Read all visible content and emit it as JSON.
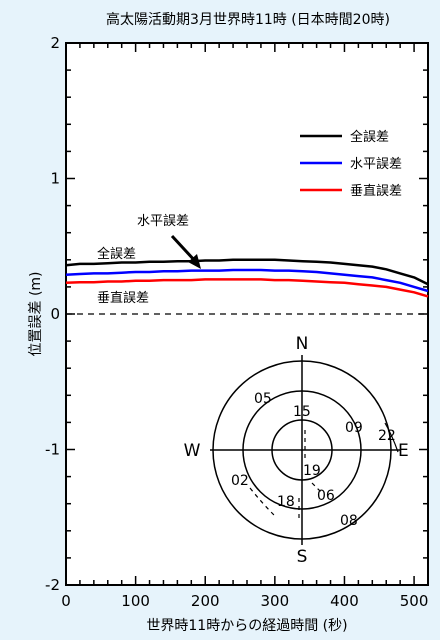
{
  "chart_data": {
    "type": "line",
    "title": "高太陽活動期3月世界時11時 (日本時間20時)",
    "xlabel": "世界時11時からの経過時間 (秒)",
    "ylabel": "位置誤差 (m)",
    "xlim": [
      0,
      520
    ],
    "ylim": [
      -2,
      2
    ],
    "xticks": [
      0,
      100,
      200,
      300,
      400,
      500
    ],
    "yticks": [
      -2,
      -1,
      0,
      1,
      2
    ],
    "grid": false,
    "legend_position": "top-right",
    "series": [
      {
        "name": "全誤差",
        "color": "#000000",
        "x": [
          0,
          20,
          40,
          60,
          80,
          100,
          120,
          140,
          160,
          180,
          200,
          220,
          240,
          260,
          280,
          300,
          320,
          340,
          360,
          380,
          400,
          420,
          440,
          460,
          480,
          500,
          520
        ],
        "y": [
          0.36,
          0.37,
          0.37,
          0.375,
          0.38,
          0.38,
          0.385,
          0.385,
          0.39,
          0.39,
          0.395,
          0.395,
          0.4,
          0.4,
          0.4,
          0.4,
          0.395,
          0.39,
          0.385,
          0.38,
          0.37,
          0.36,
          0.35,
          0.33,
          0.3,
          0.27,
          0.22
        ]
      },
      {
        "name": "水平誤差",
        "color": "#0000ff",
        "x": [
          0,
          20,
          40,
          60,
          80,
          100,
          120,
          140,
          160,
          180,
          200,
          220,
          240,
          260,
          280,
          300,
          320,
          340,
          360,
          380,
          400,
          420,
          440,
          460,
          480,
          500,
          520
        ],
        "y": [
          0.29,
          0.295,
          0.3,
          0.3,
          0.305,
          0.31,
          0.31,
          0.315,
          0.315,
          0.32,
          0.32,
          0.32,
          0.325,
          0.325,
          0.325,
          0.32,
          0.32,
          0.315,
          0.31,
          0.3,
          0.29,
          0.28,
          0.27,
          0.25,
          0.23,
          0.2,
          0.17
        ]
      },
      {
        "name": "垂直誤差",
        "color": "#ff0000",
        "x": [
          0,
          20,
          40,
          60,
          80,
          100,
          120,
          140,
          160,
          180,
          200,
          220,
          240,
          260,
          280,
          300,
          320,
          340,
          360,
          380,
          400,
          420,
          440,
          460,
          480,
          500,
          520
        ],
        "y": [
          0.23,
          0.235,
          0.235,
          0.24,
          0.24,
          0.245,
          0.245,
          0.25,
          0.25,
          0.25,
          0.255,
          0.255,
          0.255,
          0.255,
          0.255,
          0.25,
          0.25,
          0.245,
          0.24,
          0.235,
          0.23,
          0.22,
          0.21,
          0.2,
          0.18,
          0.16,
          0.13
        ]
      }
    ],
    "zero_line": {
      "y": 0,
      "style": "dashed"
    },
    "annotations": [
      "全誤差",
      "水平誤差",
      "垂直誤差"
    ],
    "skyplot": {
      "directions": [
        "N",
        "E",
        "S",
        "W"
      ],
      "satellites": [
        "05",
        "15",
        "09",
        "22",
        "19",
        "02",
        "18",
        "06",
        "08"
      ]
    }
  }
}
